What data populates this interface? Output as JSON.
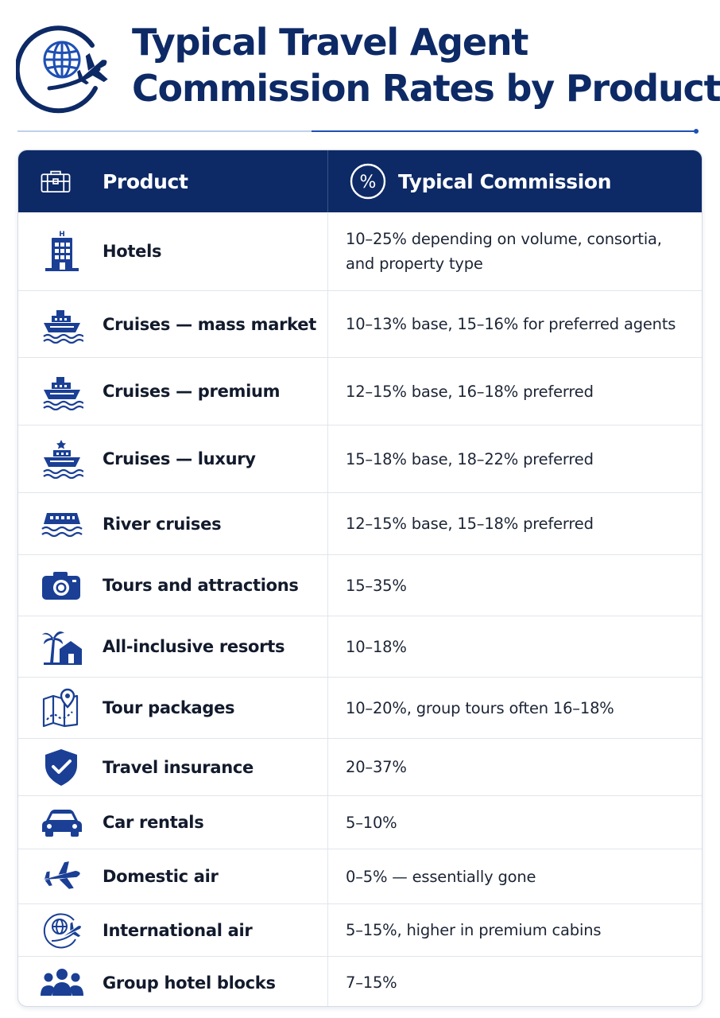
{
  "title": {
    "line1": "Typical Travel Agent",
    "line2": "Commission Rates by Product"
  },
  "colors": {
    "navy": "#0d2a66",
    "accent": "#1e50b4",
    "rule": "#7fa3d6"
  },
  "header": {
    "product_label": "Product",
    "product_icon": "briefcase-icon",
    "commission_label": "Typical Commission",
    "commission_icon": "percent-icon"
  },
  "rows": [
    {
      "product": "Hotels",
      "commission": "10–25% depending on volume, consortia, and property type",
      "icon": "hotel-icon"
    },
    {
      "product": "Cruises — mass market",
      "commission": "10–13% base, 15–16% for preferred agents",
      "icon": "cruise-ship-icon"
    },
    {
      "product": "Cruises — premium",
      "commission": "12–15% base, 16–18% preferred",
      "icon": "cruise-ship-icon"
    },
    {
      "product": "Cruises — luxury",
      "commission": "15–18% base, 18–22% preferred",
      "icon": "luxury-cruise-icon"
    },
    {
      "product": "River cruises",
      "commission": "12–15% base, 15–18% preferred",
      "icon": "river-boat-icon"
    },
    {
      "product": "Tours and attractions",
      "commission": "15–35%",
      "icon": "camera-icon"
    },
    {
      "product": "All-inclusive resorts",
      "commission": "10–18%",
      "icon": "palm-house-icon"
    },
    {
      "product": "Tour packages",
      "commission": "10–20%, group tours often 16–18%",
      "icon": "map-pin-icon"
    },
    {
      "product": "Travel insurance",
      "commission": "20–37%",
      "icon": "shield-check-icon"
    },
    {
      "product": "Car rentals",
      "commission": "5–10%",
      "icon": "car-icon"
    },
    {
      "product": "Domestic air",
      "commission": "0–5% — essentially gone",
      "icon": "airplane-icon"
    },
    {
      "product": "International air",
      "commission": "5–15%, higher in premium cabins",
      "icon": "globe-plane-icon"
    },
    {
      "product": "Group hotel blocks",
      "commission": "7–15%",
      "icon": "group-icon"
    }
  ]
}
